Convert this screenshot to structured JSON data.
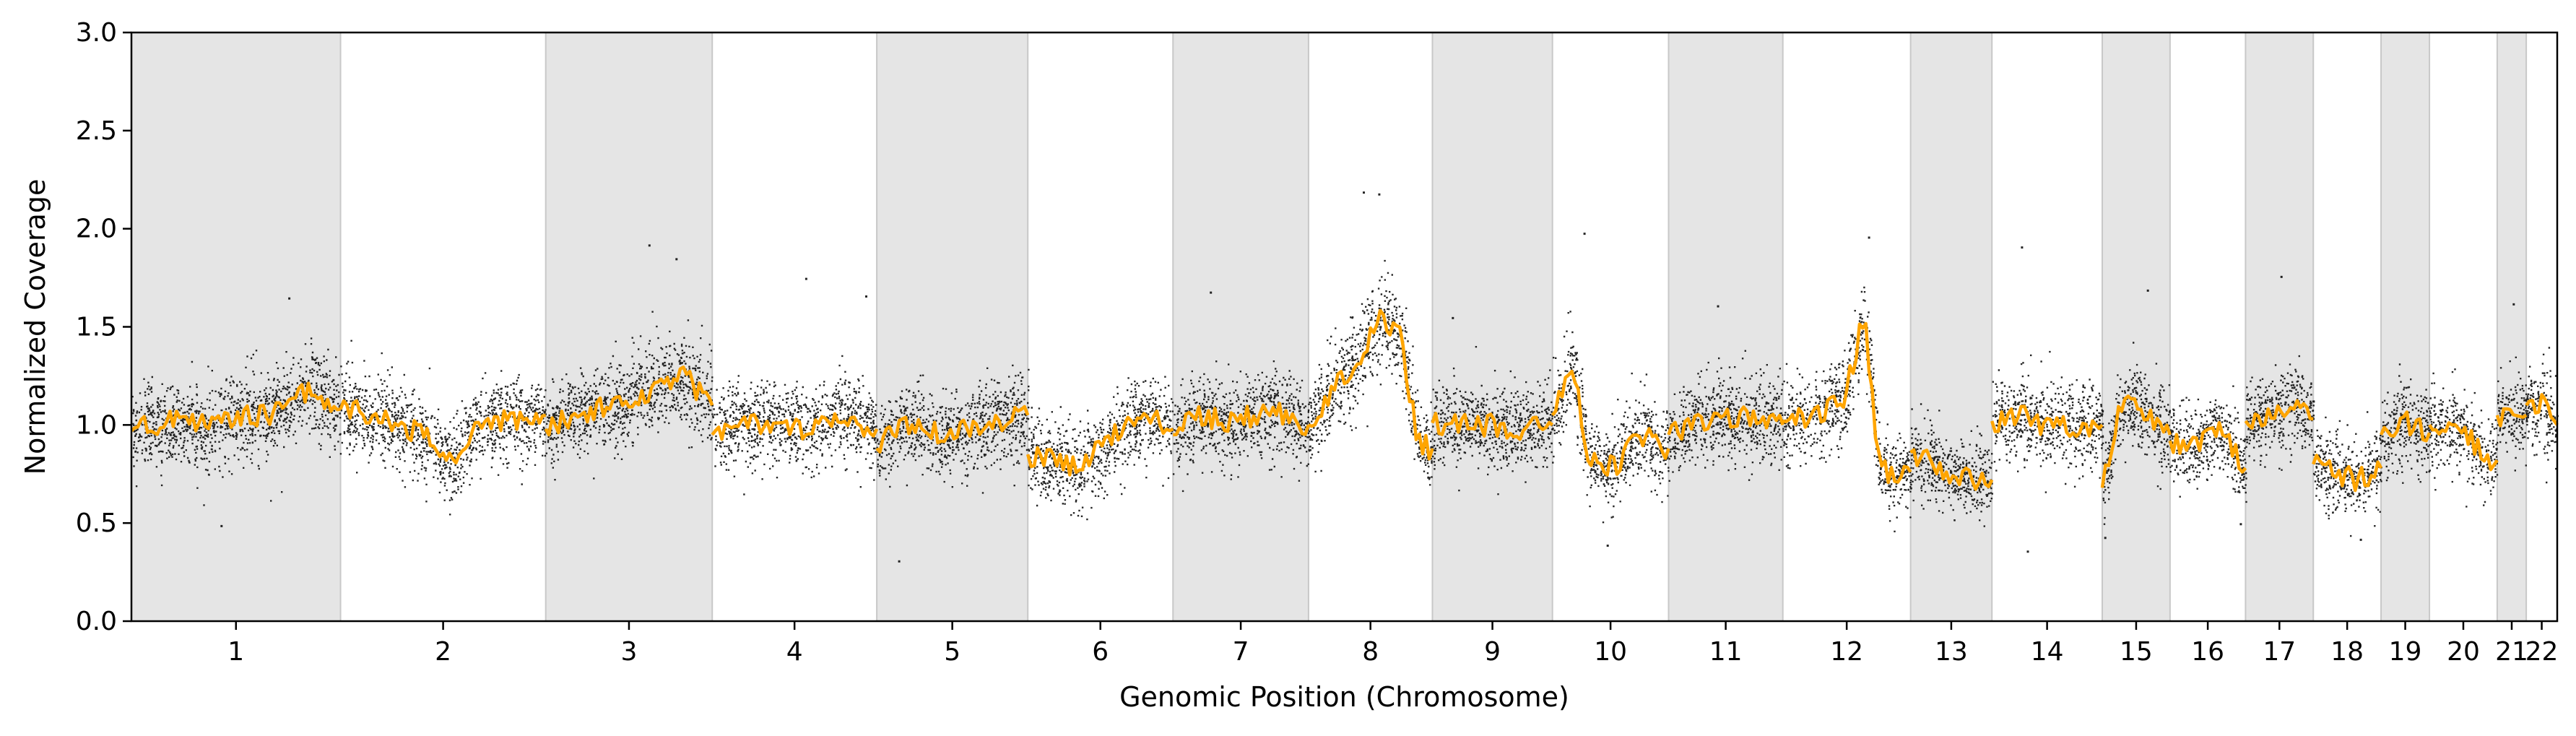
{
  "chart_data": {
    "type": "scatter",
    "title": "",
    "xlabel": "Genomic Position (Chromosome)",
    "ylabel": "Normalized Coverage",
    "ylim": [
      0,
      3.0
    ],
    "yticks": [
      "0.0",
      "0.5",
      "1.0",
      "1.5",
      "2.0",
      "2.5",
      "3.0"
    ],
    "grid": false,
    "legend": "none",
    "colors": {
      "points": "#000000",
      "segments": "#ffa500",
      "band": "#e5e5e5",
      "band_edge": "#c8c8c8",
      "axis": "#000000"
    },
    "chromosomes": [
      {
        "label": "1",
        "start": 0,
        "end": 10.8,
        "shaded": true
      },
      {
        "label": "2",
        "start": 10.8,
        "end": 21.4,
        "shaded": false
      },
      {
        "label": "3",
        "start": 21.4,
        "end": 30.0,
        "shaded": true
      },
      {
        "label": "4",
        "start": 30.0,
        "end": 38.5,
        "shaded": false
      },
      {
        "label": "5",
        "start": 38.5,
        "end": 46.3,
        "shaded": true
      },
      {
        "label": "6",
        "start": 46.3,
        "end": 53.8,
        "shaded": false
      },
      {
        "label": "7",
        "start": 53.8,
        "end": 60.8,
        "shaded": true
      },
      {
        "label": "8",
        "start": 60.8,
        "end": 67.2,
        "shaded": false
      },
      {
        "label": "9",
        "start": 67.2,
        "end": 73.4,
        "shaded": true
      },
      {
        "label": "10",
        "start": 73.4,
        "end": 79.4,
        "shaded": false
      },
      {
        "label": "11",
        "start": 79.4,
        "end": 85.3,
        "shaded": true
      },
      {
        "label": "12",
        "start": 85.3,
        "end": 91.9,
        "shaded": false
      },
      {
        "label": "13",
        "start": 91.9,
        "end": 96.1,
        "shaded": true
      },
      {
        "label": "14",
        "start": 96.1,
        "end": 101.8,
        "shaded": false
      },
      {
        "label": "15",
        "start": 101.8,
        "end": 105.3,
        "shaded": true
      },
      {
        "label": "16",
        "start": 105.3,
        "end": 109.2,
        "shaded": false
      },
      {
        "label": "17",
        "start": 109.2,
        "end": 112.7,
        "shaded": true
      },
      {
        "label": "18",
        "start": 112.7,
        "end": 116.2,
        "shaded": false
      },
      {
        "label": "19",
        "start": 116.2,
        "end": 118.7,
        "shaded": true
      },
      {
        "label": "20",
        "start": 118.7,
        "end": 122.2,
        "shaded": false
      },
      {
        "label": "21",
        "start": 122.2,
        "end": 123.7,
        "shaded": true
      },
      {
        "label": "22",
        "start": 123.7,
        "end": 125.3,
        "shaded": false
      }
    ],
    "segments": [
      {
        "chr": "1",
        "x": [
          0,
          2,
          4,
          5.5,
          7,
          8.2,
          9.4,
          10.8
        ],
        "y": [
          0.97,
          1.02,
          0.99,
          1.05,
          1.05,
          1.12,
          1.18,
          1.08
        ]
      },
      {
        "chr": "2",
        "x": [
          10.8,
          12.5,
          15,
          16.5,
          18,
          21.4
        ],
        "y": [
          1.08,
          1.05,
          0.95,
          0.8,
          1.02,
          1.05
        ]
      },
      {
        "chr": "3",
        "x": [
          21.4,
          23,
          25,
          26.5,
          28.5,
          30.0
        ],
        "y": [
          0.98,
          1.05,
          1.1,
          1.17,
          1.25,
          1.1
        ]
      },
      {
        "chr": "4",
        "x": [
          30.0,
          31,
          33,
          35,
          36.5,
          38.5
        ],
        "y": [
          0.95,
          1.0,
          1.02,
          0.97,
          1.05,
          0.98
        ]
      },
      {
        "chr": "5",
        "x": [
          38.5,
          40,
          42,
          44,
          46.3
        ],
        "y": [
          0.88,
          1.0,
          0.95,
          1.0,
          1.05
        ]
      },
      {
        "chr": "6",
        "x": [
          46.3,
          47.5,
          49,
          50.5,
          52,
          53.8
        ],
        "y": [
          0.85,
          0.82,
          0.78,
          0.92,
          1.05,
          0.98
        ]
      },
      {
        "chr": "7",
        "x": [
          53.8,
          55,
          57,
          59,
          60.8
        ],
        "y": [
          0.95,
          1.05,
          1.02,
          1.08,
          1.0
        ]
      },
      {
        "chr": "8",
        "x": [
          60.8,
          62,
          63.5,
          64.5,
          65.5,
          66.5,
          67.2
        ],
        "y": [
          1.0,
          1.18,
          1.35,
          1.55,
          1.45,
          0.9,
          0.88
        ]
      },
      {
        "chr": "9",
        "x": [
          67.2,
          69.5,
          70,
          72,
          73.4
        ],
        "y": [
          1.01,
          1.01,
          1.0,
          0.98,
          1.0
        ]
      },
      {
        "chr": "10",
        "x": [
          73.4,
          74.5,
          75.3,
          76.5,
          78,
          79.4
        ],
        "y": [
          1.05,
          1.28,
          0.82,
          0.78,
          0.95,
          0.88
        ]
      },
      {
        "chr": "11",
        "x": [
          79.4,
          81,
          83,
          85.3
        ],
        "y": [
          0.95,
          1.02,
          1.05,
          1.0
        ]
      },
      {
        "chr": "12",
        "x": [
          85.3,
          87,
          88.5,
          89.5,
          90.3,
          91.9
        ],
        "y": [
          1.02,
          1.05,
          1.15,
          1.55,
          0.76,
          0.76
        ]
      },
      {
        "chr": "13",
        "x": [
          91.9,
          93,
          94.5,
          96.1
        ],
        "y": [
          0.86,
          0.8,
          0.74,
          0.72
        ]
      },
      {
        "chr": "14",
        "x": [
          96.1,
          97.5,
          99,
          100,
          101.8
        ],
        "y": [
          1.02,
          1.05,
          0.98,
          1.0,
          1.0
        ]
      },
      {
        "chr": "15",
        "x": [
          101.8,
          102.6,
          103.5,
          104.5,
          105.3
        ],
        "y": [
          0.68,
          1.05,
          1.12,
          1.0,
          0.95
        ]
      },
      {
        "chr": "16",
        "x": [
          105.3,
          106.5,
          107.8,
          109.2
        ],
        "y": [
          0.92,
          0.88,
          0.98,
          0.78
        ]
      },
      {
        "chr": "17",
        "x": [
          109.2,
          110.5,
          111.5,
          112.7
        ],
        "y": [
          1.02,
          1.05,
          1.12,
          1.03
        ]
      },
      {
        "chr": "18",
        "x": [
          112.7,
          113.8,
          115,
          116.2
        ],
        "y": [
          0.8,
          0.75,
          0.72,
          0.78
        ]
      },
      {
        "chr": "19",
        "x": [
          116.2,
          117.3,
          118.7
        ],
        "y": [
          0.95,
          1.02,
          0.96
        ]
      },
      {
        "chr": "20",
        "x": [
          118.7,
          120.5,
          121.5,
          122.2
        ],
        "y": [
          1.0,
          0.98,
          0.82,
          0.82
        ]
      },
      {
        "chr": "21",
        "x": [
          122.2,
          123.7
        ],
        "y": [
          1.05,
          1.05
        ]
      },
      {
        "chr": "22",
        "x": [
          123.7,
          124.5,
          125.3
        ],
        "y": [
          1.1,
          1.1,
          1.0
        ]
      }
    ],
    "points_per_unit": 110,
    "point_noise": 0.09,
    "outliers": [
      {
        "x": 4.6,
        "y": 0.49
      },
      {
        "x": 8.1,
        "y": 1.65
      },
      {
        "x": 26.7,
        "y": 1.92
      },
      {
        "x": 28.1,
        "y": 1.85
      },
      {
        "x": 34.8,
        "y": 1.75
      },
      {
        "x": 37.9,
        "y": 1.66
      },
      {
        "x": 39.6,
        "y": 0.31
      },
      {
        "x": 55.7,
        "y": 1.68
      },
      {
        "x": 63.6,
        "y": 2.19
      },
      {
        "x": 64.4,
        "y": 2.18
      },
      {
        "x": 68.2,
        "y": 1.55
      },
      {
        "x": 75.0,
        "y": 1.98
      },
      {
        "x": 76.2,
        "y": 0.39
      },
      {
        "x": 81.9,
        "y": 1.61
      },
      {
        "x": 89.7,
        "y": 1.96
      },
      {
        "x": 97.6,
        "y": 1.91
      },
      {
        "x": 97.9,
        "y": 0.36
      },
      {
        "x": 101.9,
        "y": 0.43
      },
      {
        "x": 104.1,
        "y": 1.69
      },
      {
        "x": 111.0,
        "y": 1.76
      },
      {
        "x": 123.0,
        "y": 1.62
      },
      {
        "x": 108.9,
        "y": 0.5
      },
      {
        "x": 115.1,
        "y": 0.42
      }
    ]
  }
}
